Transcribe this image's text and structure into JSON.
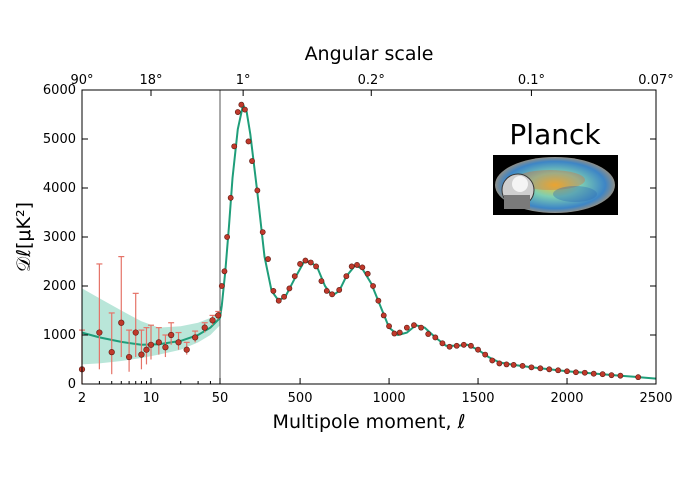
{
  "chart_data": {
    "type": "scatter",
    "title": "",
    "top_axis_label": "Angular scale",
    "top_ticks": [
      {
        "ell": 2,
        "label": "90°"
      },
      {
        "ell": 10,
        "label": "18°"
      },
      {
        "ell": 180,
        "label": "1°"
      },
      {
        "ell": 900,
        "label": "0.2°"
      },
      {
        "ell": 1800,
        "label": "0.1°"
      },
      {
        "ell": 2500,
        "label": "0.07°"
      }
    ],
    "xlabel": "Multipole moment, ℓ",
    "ylabel": "𝒟ℓ[μK²]",
    "ylim": [
      0,
      6000
    ],
    "yticks": [
      0,
      1000,
      2000,
      3000,
      4000,
      5000,
      6000
    ],
    "xscale": "log for ℓ < 50, linear for ℓ ≥ 50",
    "xticks": [
      {
        "v": 2,
        "label": "2"
      },
      {
        "v": 10,
        "label": "10"
      },
      {
        "v": 50,
        "label": "50"
      },
      {
        "v": 500,
        "label": "500"
      },
      {
        "v": 1000,
        "label": "1000"
      },
      {
        "v": 1500,
        "label": "1500"
      },
      {
        "v": 2000,
        "label": "2000"
      },
      {
        "v": 2500,
        "label": "2500"
      }
    ],
    "colors": {
      "points": "#c0392b",
      "fit": "#1f9e7a",
      "band": "#a8e0d0",
      "errorbar": "#e57368"
    },
    "brand_label": "Planck",
    "model_curve": [
      [
        2,
        1050
      ],
      [
        3,
        950
      ],
      [
        5,
        860
      ],
      [
        8,
        800
      ],
      [
        12,
        810
      ],
      [
        20,
        880
      ],
      [
        30,
        1000
      ],
      [
        40,
        1150
      ],
      [
        50,
        1350
      ],
      [
        60,
        1600
      ],
      [
        80,
        2300
      ],
      [
        100,
        3200
      ],
      [
        120,
        4200
      ],
      [
        150,
        5200
      ],
      [
        180,
        5700
      ],
      [
        200,
        5550
      ],
      [
        220,
        5100
      ],
      [
        260,
        3900
      ],
      [
        300,
        2600
      ],
      [
        340,
        1900
      ],
      [
        380,
        1700
      ],
      [
        420,
        1800
      ],
      [
        470,
        2150
      ],
      [
        520,
        2480
      ],
      [
        560,
        2500
      ],
      [
        600,
        2350
      ],
      [
        640,
        2000
      ],
      [
        680,
        1800
      ],
      [
        720,
        1900
      ],
      [
        760,
        2200
      ],
      [
        810,
        2420
      ],
      [
        850,
        2350
      ],
      [
        900,
        2050
      ],
      [
        950,
        1600
      ],
      [
        1000,
        1150
      ],
      [
        1050,
        1000
      ],
      [
        1100,
        1050
      ],
      [
        1150,
        1200
      ],
      [
        1200,
        1150
      ],
      [
        1260,
        950
      ],
      [
        1320,
        780
      ],
      [
        1380,
        780
      ],
      [
        1440,
        800
      ],
      [
        1500,
        700
      ],
      [
        1560,
        550
      ],
      [
        1620,
        440
      ],
      [
        1700,
        390
      ],
      [
        1800,
        340
      ],
      [
        1900,
        300
      ],
      [
        2000,
        260
      ],
      [
        2100,
        230
      ],
      [
        2200,
        200
      ],
      [
        2300,
        170
      ],
      [
        2400,
        140
      ],
      [
        2500,
        110
      ]
    ],
    "band_lowl": [
      [
        2,
        400,
        1950
      ],
      [
        3,
        420,
        1750
      ],
      [
        5,
        470,
        1500
      ],
      [
        8,
        530,
        1280
      ],
      [
        12,
        600,
        1150
      ],
      [
        20,
        700,
        1180
      ],
      [
        30,
        850,
        1250
      ],
      [
        40,
        1000,
        1350
      ],
      [
        50,
        1200,
        1500
      ]
    ],
    "lowl_points": [
      {
        "l": 2,
        "y": 300,
        "lo": 0,
        "hi": 1100
      },
      {
        "l": 3,
        "y": 1050,
        "lo": 300,
        "hi": 2450
      },
      {
        "l": 4,
        "y": 650,
        "lo": 200,
        "hi": 1450
      },
      {
        "l": 5,
        "y": 1250,
        "lo": 550,
        "hi": 2600
      },
      {
        "l": 6,
        "y": 550,
        "lo": 250,
        "hi": 1100
      },
      {
        "l": 7,
        "y": 1050,
        "lo": 550,
        "hi": 1850
      },
      {
        "l": 8,
        "y": 600,
        "lo": 300,
        "hi": 1100
      },
      {
        "l": 9,
        "y": 700,
        "lo": 400,
        "hi": 1150
      },
      {
        "l": 10,
        "y": 800,
        "lo": 500,
        "hi": 1200
      },
      {
        "l": 12,
        "y": 850,
        "lo": 600,
        "hi": 1150
      },
      {
        "l": 14,
        "y": 750,
        "lo": 550,
        "hi": 1000
      },
      {
        "l": 16,
        "y": 1000,
        "lo": 800,
        "hi": 1250
      },
      {
        "l": 19,
        "y": 850,
        "lo": 700,
        "hi": 1050
      },
      {
        "l": 23,
        "y": 700,
        "lo": 600,
        "hi": 850
      },
      {
        "l": 28,
        "y": 950,
        "lo": 850,
        "hi": 1080
      },
      {
        "l": 35,
        "y": 1150,
        "lo": 1050,
        "hi": 1250
      },
      {
        "l": 42,
        "y": 1300,
        "lo": 1200,
        "hi": 1400
      },
      {
        "l": 48,
        "y": 1400,
        "lo": 1320,
        "hi": 1480
      }
    ],
    "highl_points": [
      [
        60,
        2000
      ],
      [
        75,
        2300
      ],
      [
        90,
        3000
      ],
      [
        110,
        3800
      ],
      [
        130,
        4850
      ],
      [
        150,
        5550
      ],
      [
        170,
        5700
      ],
      [
        190,
        5600
      ],
      [
        210,
        4950
      ],
      [
        230,
        4550
      ],
      [
        260,
        3950
      ],
      [
        290,
        3100
      ],
      [
        320,
        2550
      ],
      [
        350,
        1900
      ],
      [
        380,
        1700
      ],
      [
        410,
        1780
      ],
      [
        440,
        1950
      ],
      [
        470,
        2200
      ],
      [
        500,
        2450
      ],
      [
        530,
        2520
      ],
      [
        560,
        2480
      ],
      [
        590,
        2400
      ],
      [
        620,
        2100
      ],
      [
        650,
        1900
      ],
      [
        680,
        1830
      ],
      [
        720,
        1920
      ],
      [
        760,
        2200
      ],
      [
        790,
        2400
      ],
      [
        820,
        2430
      ],
      [
        850,
        2380
      ],
      [
        880,
        2250
      ],
      [
        910,
        2000
      ],
      [
        940,
        1700
      ],
      [
        970,
        1400
      ],
      [
        1000,
        1180
      ],
      [
        1030,
        1030
      ],
      [
        1060,
        1050
      ],
      [
        1100,
        1150
      ],
      [
        1140,
        1200
      ],
      [
        1180,
        1150
      ],
      [
        1220,
        1020
      ],
      [
        1260,
        950
      ],
      [
        1300,
        830
      ],
      [
        1340,
        760
      ],
      [
        1380,
        780
      ],
      [
        1420,
        800
      ],
      [
        1460,
        780
      ],
      [
        1500,
        700
      ],
      [
        1540,
        600
      ],
      [
        1580,
        480
      ],
      [
        1620,
        420
      ],
      [
        1660,
        400
      ],
      [
        1700,
        390
      ],
      [
        1750,
        370
      ],
      [
        1800,
        340
      ],
      [
        1850,
        320
      ],
      [
        1900,
        300
      ],
      [
        1950,
        280
      ],
      [
        2000,
        260
      ],
      [
        2050,
        240
      ],
      [
        2100,
        230
      ],
      [
        2150,
        210
      ],
      [
        2200,
        200
      ],
      [
        2250,
        180
      ],
      [
        2300,
        170
      ],
      [
        2400,
        140
      ]
    ]
  }
}
